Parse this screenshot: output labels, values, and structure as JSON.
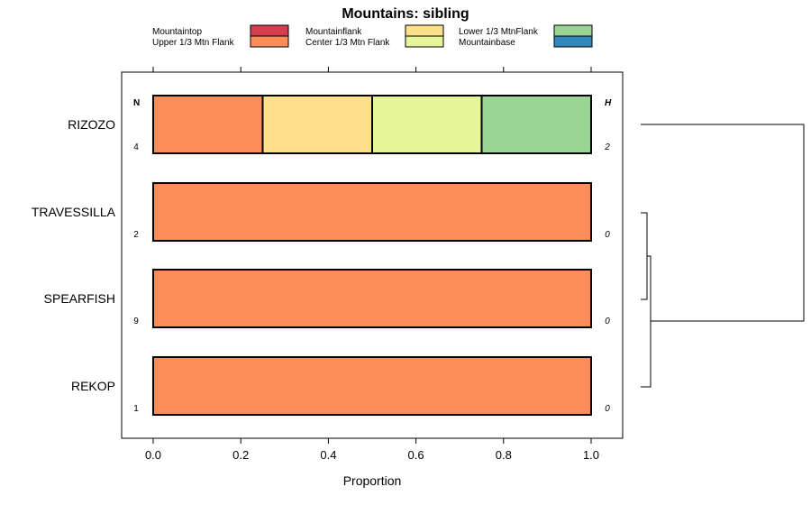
{
  "chart_data": {
    "type": "bar",
    "orientation": "horizontal-stacked",
    "title": "Mountains: sibling",
    "xlabel": "Proportion",
    "ylabel": "",
    "xlim": [
      0,
      1
    ],
    "xticks": [
      "0.0",
      "0.2",
      "0.4",
      "0.6",
      "0.8",
      "1.0"
    ],
    "n_header": "N",
    "h_header": "H",
    "legend": [
      {
        "name": "Mountaintop",
        "color": "#d53e4f"
      },
      {
        "name": "Upper 1/3 Mtn Flank",
        "color": "#fc8d59"
      },
      {
        "name": "Mountainflank",
        "color": "#fee08b"
      },
      {
        "name": "Center 1/3 Mtn Flank",
        "color": "#e6f598"
      },
      {
        "name": "Lower 1/3 MtnFlank",
        "color": "#99d594"
      },
      {
        "name": "Mountainbase",
        "color": "#3288bd"
      }
    ],
    "categories": [
      "RIZOZO",
      "TRAVESSILLA",
      "SPEARFISH",
      "REKOP"
    ],
    "n": [
      "4",
      "2",
      "9",
      "1"
    ],
    "h": [
      "2",
      "0",
      "0",
      "0"
    ],
    "series": [
      {
        "name": "Mountaintop",
        "values": [
          0,
          0,
          0,
          0
        ]
      },
      {
        "name": "Upper 1/3 Mtn Flank",
        "values": [
          0.25,
          1,
          1,
          1
        ]
      },
      {
        "name": "Mountainflank",
        "values": [
          0.25,
          0,
          0,
          0
        ]
      },
      {
        "name": "Center 1/3 Mtn Flank",
        "values": [
          0.25,
          0,
          0,
          0
        ]
      },
      {
        "name": "Lower 1/3 MtnFlank",
        "values": [
          0.25,
          0,
          0,
          0
        ]
      },
      {
        "name": "Mountainbase",
        "values": [
          0,
          0,
          0,
          0
        ]
      }
    ],
    "dendrogram": "right"
  }
}
